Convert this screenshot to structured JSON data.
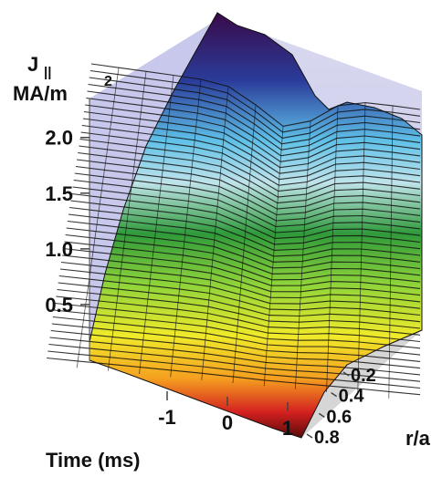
{
  "chart_data": {
    "type": "surface",
    "title": "",
    "zlabel_line1": "J",
    "zlabel_sub": "||",
    "zlabel_line2": "MA/m",
    "zlabel_sup": "2",
    "xlabel": "Time (ms)",
    "ylabel": "r/a",
    "z_ticks": [
      "0.5",
      "1.0",
      "1.5",
      "2.0"
    ],
    "z_tick_values": [
      0.5,
      1.0,
      1.5,
      2.0
    ],
    "x_ticks": [
      "-1",
      "0",
      "1"
    ],
    "x_tick_values": [
      -1,
      0,
      1
    ],
    "y_ticks": [
      "0.2",
      "0.4",
      "0.6",
      "0.8"
    ],
    "y_tick_values": [
      0.2,
      0.4,
      0.6,
      0.8
    ],
    "x_range": [
      -2,
      1.5
    ],
    "y_range": [
      0.0,
      0.85
    ],
    "z_range": [
      0.0,
      2.35
    ],
    "colormap": [
      "#3a0a4a",
      "#2a3c9a",
      "#5fc0e8",
      "#bfe3ea",
      "#2f9a3a",
      "#8fd43a",
      "#f0ea2a",
      "#f5a020",
      "#d42020",
      "#5a0a0a"
    ],
    "surface_description_values": {
      "r_over_a": [
        0.0,
        0.1,
        0.2,
        0.3,
        0.4,
        0.5,
        0.6,
        0.7,
        0.8
      ],
      "J_before_crash": [
        2.3,
        2.15,
        1.9,
        1.6,
        1.3,
        0.95,
        0.65,
        0.35,
        0.1
      ],
      "J_after_crash": [
        1.85,
        1.9,
        1.85,
        1.65,
        1.35,
        1.0,
        0.68,
        0.36,
        0.1
      ]
    }
  }
}
